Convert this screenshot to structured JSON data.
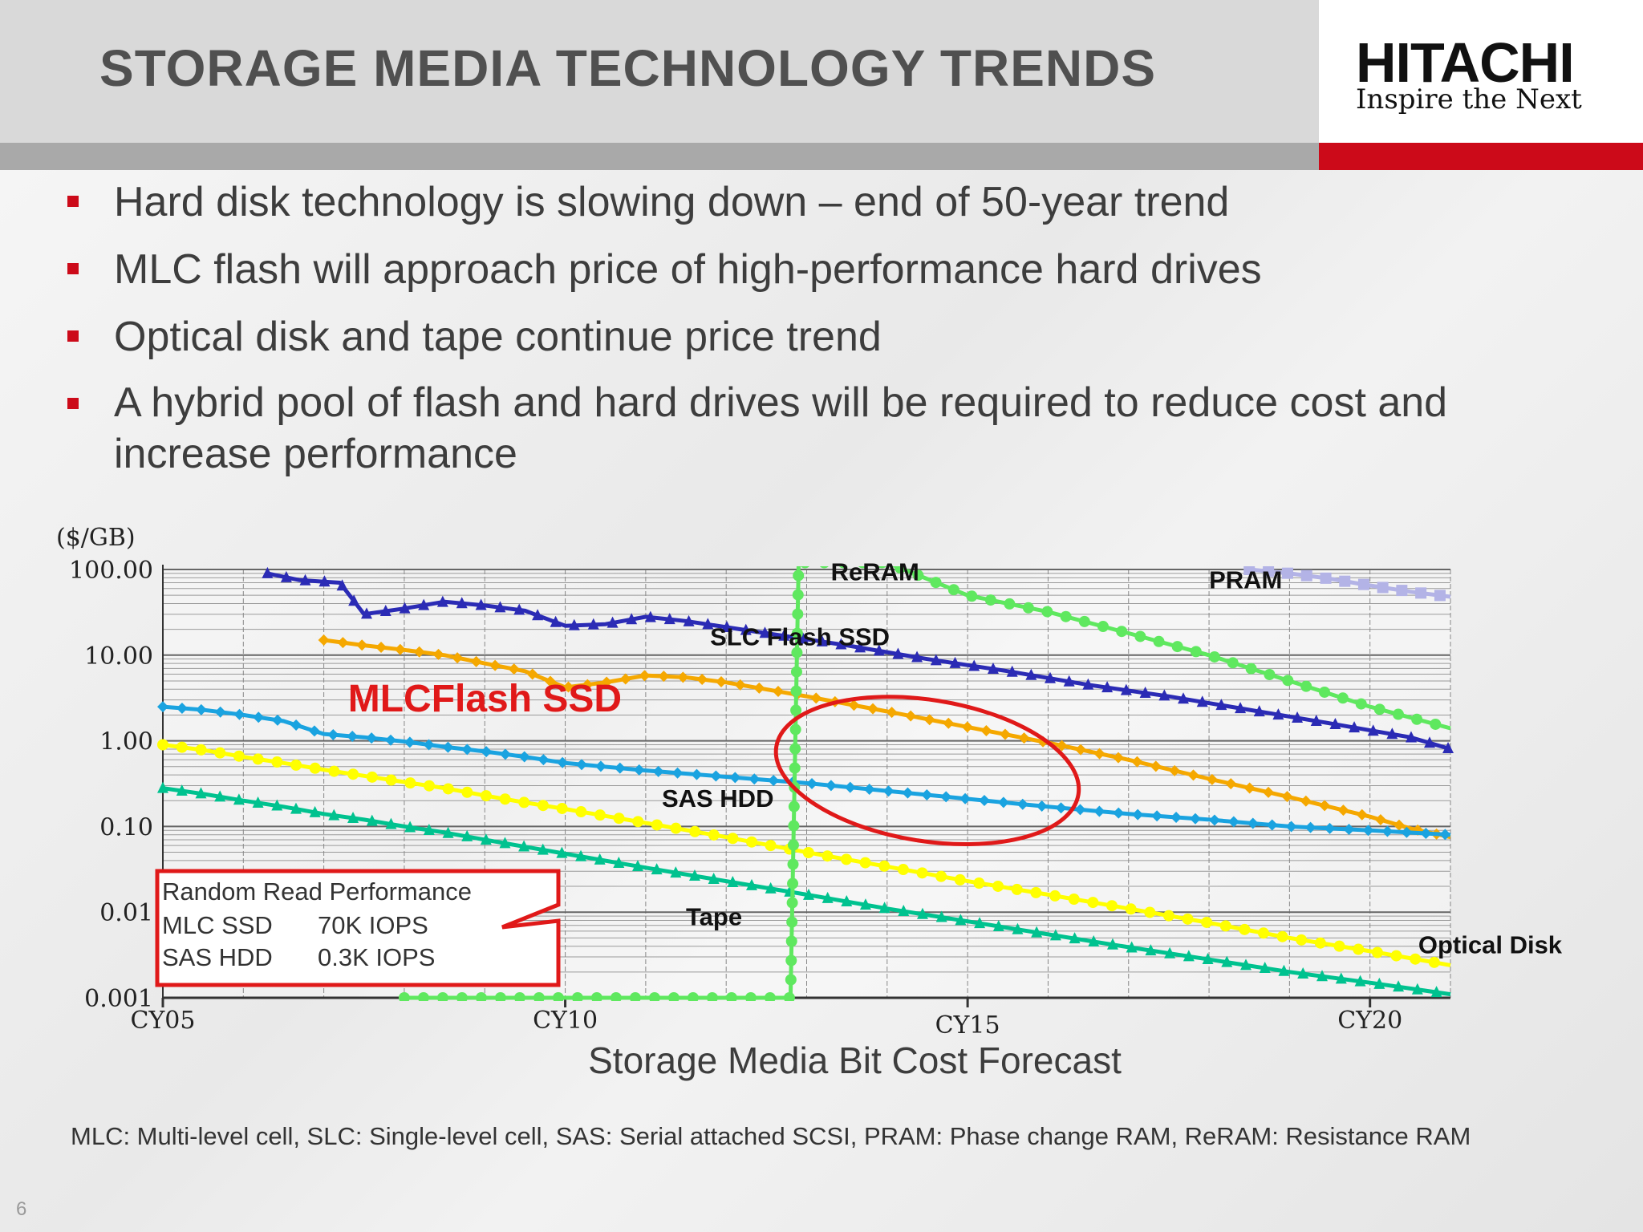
{
  "slide": {
    "title": "STORAGE MEDIA TECHNOLOGY TRENDS",
    "logo": {
      "brand": "HITACHI",
      "tagline": "Inspire the Next"
    },
    "bullets": [
      "Hard disk technology is slowing down – end of 50-year trend",
      "MLC flash will approach price of high-performance hard drives",
      "Optical disk and tape continue price trend",
      "A hybrid pool of flash and hard drives will be required to reduce cost and increase performance"
    ],
    "footnote": "MLC: Multi-level cell, SLC: Single-level cell, SAS: Serial attached SCSI, PRAM: Phase change RAM, ReRAM: Resistance RAM",
    "page_number": "6"
  },
  "chart_data": {
    "type": "line",
    "title": "Storage Media Bit Cost Forecast",
    "ylabel": "($/GB)",
    "yscale": "log",
    "ylim": [
      0.001,
      100
    ],
    "xlim": [
      2005,
      2021
    ],
    "yticks": [
      {
        "value": 100,
        "label": "100.00"
      },
      {
        "value": 10,
        "label": "10.00"
      },
      {
        "value": 1,
        "label": "1.00"
      },
      {
        "value": 0.1,
        "label": "0.10"
      },
      {
        "value": 0.01,
        "label": "0.01"
      },
      {
        "value": 0.001,
        "label": "0.001"
      }
    ],
    "xticks": [
      {
        "value": 2005,
        "label": "CY05"
      },
      {
        "value": 2010,
        "label": "CY10"
      },
      {
        "value": 2015,
        "label": "CY15"
      },
      {
        "value": 2020,
        "label": "CY20"
      }
    ],
    "grid": true,
    "series": [
      {
        "name": "SLC Flash SSD",
        "color": "#2b2bb5",
        "marker": "triangle",
        "points": [
          [
            2006.3,
            90
          ],
          [
            2006.7,
            75
          ],
          [
            2007.2,
            70
          ],
          [
            2007.5,
            30
          ],
          [
            2008.0,
            35
          ],
          [
            2008.5,
            42
          ],
          [
            2009.0,
            38
          ],
          [
            2009.5,
            33
          ],
          [
            2010.0,
            22
          ],
          [
            2010.5,
            23
          ],
          [
            2011.0,
            28
          ],
          [
            2011.5,
            25
          ],
          [
            2012.5,
            18
          ],
          [
            2013.5,
            13
          ],
          [
            2014.5,
            9
          ],
          [
            2015.5,
            6.5
          ],
          [
            2016.5,
            4.5
          ],
          [
            2017.5,
            3.3
          ],
          [
            2018.5,
            2.3
          ],
          [
            2019.5,
            1.6
          ],
          [
            2020.5,
            1.1
          ],
          [
            2021.0,
            0.8
          ]
        ]
      },
      {
        "name": "MLCFlash SSD",
        "color": "#f5a800",
        "marker": "diamond",
        "points": [
          [
            2007.0,
            15
          ],
          [
            2007.5,
            13
          ],
          [
            2008.0,
            11.5
          ],
          [
            2008.5,
            10
          ],
          [
            2009.0,
            8
          ],
          [
            2009.5,
            6.5
          ],
          [
            2010.0,
            4.2
          ],
          [
            2010.5,
            4.8
          ],
          [
            2011.0,
            5.8
          ],
          [
            2011.5,
            5.5
          ],
          [
            2012.0,
            4.8
          ],
          [
            2013.0,
            3.3
          ],
          [
            2014.0,
            2.2
          ],
          [
            2015.0,
            1.45
          ],
          [
            2016.0,
            0.95
          ],
          [
            2017.0,
            0.6
          ],
          [
            2018.0,
            0.36
          ],
          [
            2019.0,
            0.22
          ],
          [
            2020.0,
            0.13
          ],
          [
            2020.5,
            0.095
          ],
          [
            2021.0,
            0.075
          ]
        ]
      },
      {
        "name": "SAS HDD",
        "color": "#1aa3e0",
        "marker": "diamond",
        "points": [
          [
            2005.0,
            2.5
          ],
          [
            2005.5,
            2.3
          ],
          [
            2006.0,
            2.0
          ],
          [
            2006.5,
            1.7
          ],
          [
            2007.0,
            1.2
          ],
          [
            2007.5,
            1.1
          ],
          [
            2008.0,
            0.98
          ],
          [
            2008.5,
            0.85
          ],
          [
            2009.0,
            0.75
          ],
          [
            2009.5,
            0.65
          ],
          [
            2010.0,
            0.55
          ],
          [
            2011.0,
            0.45
          ],
          [
            2012.0,
            0.38
          ],
          [
            2013.0,
            0.32
          ],
          [
            2014.0,
            0.26
          ],
          [
            2015.0,
            0.21
          ],
          [
            2016.0,
            0.17
          ],
          [
            2017.0,
            0.14
          ],
          [
            2018.0,
            0.12
          ],
          [
            2019.0,
            0.1
          ],
          [
            2020.0,
            0.09
          ],
          [
            2021.0,
            0.08
          ]
        ]
      },
      {
        "name": "Optical Disk",
        "color": "#ffff00",
        "marker": "circle",
        "points": [
          [
            2005.0,
            0.9
          ],
          [
            2005.5,
            0.78
          ],
          [
            2006.0,
            0.65
          ],
          [
            2006.5,
            0.55
          ],
          [
            2007.0,
            0.46
          ],
          [
            2007.5,
            0.39
          ],
          [
            2008.0,
            0.33
          ],
          [
            2008.5,
            0.28
          ],
          [
            2009.0,
            0.23
          ],
          [
            2009.5,
            0.19
          ],
          [
            2010.0,
            0.16
          ],
          [
            2011.0,
            0.11
          ],
          [
            2012.0,
            0.075
          ],
          [
            2013.0,
            0.05
          ],
          [
            2014.0,
            0.034
          ],
          [
            2015.0,
            0.023
          ],
          [
            2016.0,
            0.016
          ],
          [
            2017.0,
            0.011
          ],
          [
            2018.0,
            0.0075
          ],
          [
            2019.0,
            0.005
          ],
          [
            2020.0,
            0.0035
          ],
          [
            2020.5,
            0.0029
          ],
          [
            2021.0,
            0.0024
          ]
        ]
      },
      {
        "name": "Tape",
        "color": "#00c28f",
        "marker": "triangle",
        "points": [
          [
            2005.0,
            0.28
          ],
          [
            2005.5,
            0.24
          ],
          [
            2006.0,
            0.2
          ],
          [
            2006.5,
            0.17
          ],
          [
            2007.0,
            0.14
          ],
          [
            2007.5,
            0.12
          ],
          [
            2008.0,
            0.1
          ],
          [
            2008.5,
            0.085
          ],
          [
            2009.0,
            0.07
          ],
          [
            2009.5,
            0.058
          ],
          [
            2010.0,
            0.048
          ],
          [
            2011.0,
            0.033
          ],
          [
            2012.0,
            0.023
          ],
          [
            2013.0,
            0.016
          ],
          [
            2014.0,
            0.011
          ],
          [
            2015.0,
            0.0078
          ],
          [
            2016.0,
            0.0055
          ],
          [
            2017.0,
            0.0039
          ],
          [
            2018.0,
            0.0028
          ],
          [
            2019.0,
            0.002
          ],
          [
            2020.0,
            0.0015
          ],
          [
            2021.0,
            0.0011
          ]
        ]
      },
      {
        "name": "ReRAM",
        "color": "#5fe85f",
        "marker": "circle",
        "points": [
          [
            2008.0,
            0.001
          ],
          [
            2009.0,
            0.001
          ],
          [
            2010.0,
            0.001
          ],
          [
            2011.0,
            0.001
          ],
          [
            2012.0,
            0.001
          ],
          [
            2012.8,
            0.001
          ],
          [
            2012.9,
            120
          ],
          [
            2014.0,
            120
          ],
          [
            2015.0,
            50
          ],
          [
            2016.0,
            32
          ],
          [
            2017.0,
            18
          ],
          [
            2018.0,
            10
          ],
          [
            2019.0,
            5
          ],
          [
            2020.0,
            2.5
          ],
          [
            2021.0,
            1.4
          ]
        ]
      },
      {
        "name": "PRAM",
        "color": "#b3b3e6",
        "marker": "square",
        "points": [
          [
            2018.5,
            100
          ],
          [
            2019.0,
            90
          ],
          [
            2019.5,
            78
          ],
          [
            2020.0,
            65
          ],
          [
            2020.5,
            55
          ],
          [
            2021.0,
            48
          ]
        ]
      }
    ],
    "annotations": [
      {
        "text": "ReRAM",
        "at": [
          2013.3,
          75
        ]
      },
      {
        "text": "PRAM",
        "at": [
          2018.0,
          60
        ]
      },
      {
        "text": "SLC Flash SSD",
        "at": [
          2011.8,
          13
        ]
      },
      {
        "text": "MLCFlash SSD",
        "at": [
          2007.3,
          2.2
        ]
      },
      {
        "text": "SAS HDD",
        "at": [
          2011.2,
          0.17
        ]
      },
      {
        "text": "Tape",
        "at": [
          2011.5,
          0.007
        ]
      },
      {
        "text": "Optical Disk",
        "at": [
          2020.6,
          0.0033
        ]
      }
    ],
    "callout": {
      "title": "Random Read Performance",
      "rows": [
        {
          "label": "MLC SSD",
          "value": "70K IOPS"
        },
        {
          "label": "SAS HDD",
          "value": "0.3K IOPS"
        }
      ]
    },
    "highlight_ellipse": {
      "center": [
        2014.5,
        0.45
      ],
      "radius_x_years": 1.9,
      "color": "#e01919"
    }
  }
}
